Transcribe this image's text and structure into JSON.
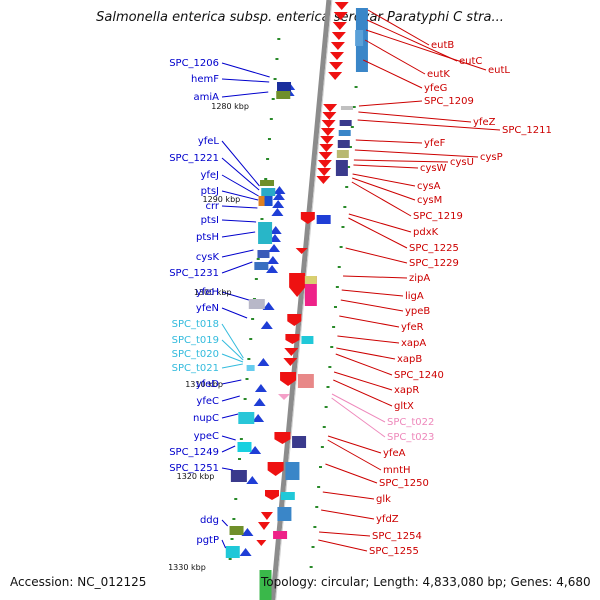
{
  "header": {
    "title": "Salmonella enterica subsp. enterica serovar Paratyphi C stra..."
  },
  "footer": {
    "accession": "Accession: NC_012125",
    "topology": "Topology: circular; Length: 4,833,080 bp; Genes: 4,680"
  },
  "colors": {
    "left_label": "#0000cc",
    "left_trna": "#33bbdd",
    "right_label": "#cc0000",
    "right_trna": "#ee88bb",
    "backbone": "#888888"
  },
  "scale": [
    "1280 kbp",
    "1290 kbp",
    "1300 kbp",
    "1310 kbp",
    "1320 kbp",
    "1330 kbp"
  ],
  "left_labels": [
    "SPC_1206",
    "hemF",
    "amiA",
    "yfeL",
    "SPC_1221",
    "yfeJ",
    "ptsJ",
    "crr",
    "ptsI",
    "ptsH",
    "cysK",
    "SPC_1231",
    "yfeH",
    "yfeN",
    "SPC_t018",
    "SPC_t019",
    "SPC_t020",
    "SPC_t021",
    "yfeD",
    "yfeC",
    "nupC",
    "ypeC",
    "SPC_1249",
    "SPC_1251",
    "ddg",
    "pgtP"
  ],
  "right_labels": [
    "eutB",
    "eutC",
    "eutL",
    "eutK",
    "yfeG",
    "SPC_1209",
    "yfeZ",
    "SPC_1211",
    "yfeF",
    "cysP",
    "cysU",
    "cysW",
    "cysA",
    "cysM",
    "SPC_1219",
    "pdxK",
    "SPC_1225",
    "SPC_1229",
    "zipA",
    "ligA",
    "ypeB",
    "yfeR",
    "xapA",
    "xapB",
    "SPC_1240",
    "xapR",
    "gltX",
    "SPC_t022",
    "SPC_t023",
    "yfeA",
    "mntH",
    "SPC_1250",
    "glk",
    "yfdZ",
    "SPC_1254",
    "SPC_1255"
  ]
}
